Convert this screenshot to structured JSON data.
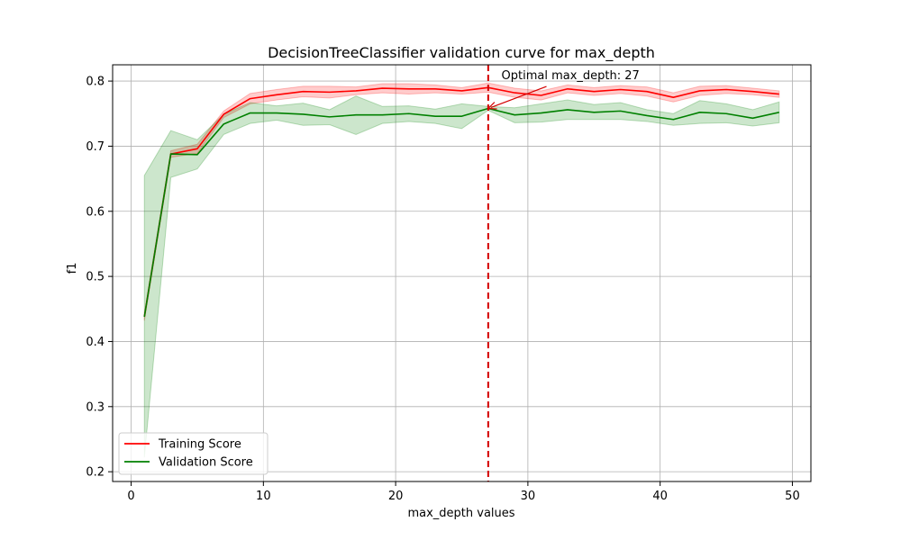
{
  "chart_data": {
    "type": "line",
    "title": "DecisionTreeClassifier validation curve for max_depth",
    "xlabel": "max_depth values",
    "ylabel": "f1",
    "xlim": [
      -1.4,
      51.4
    ],
    "ylim": [
      0.185,
      0.825
    ],
    "xticks": [
      0,
      10,
      20,
      30,
      40,
      50
    ],
    "yticks": [
      0.2,
      0.3,
      0.4,
      0.5,
      0.6,
      0.7,
      0.8
    ],
    "grid": true,
    "legend_position": "lower-left",
    "x": [
      1,
      3,
      5,
      7,
      9,
      11,
      13,
      15,
      17,
      19,
      21,
      23,
      25,
      27,
      29,
      31,
      33,
      35,
      37,
      39,
      41,
      43,
      45,
      47,
      49
    ],
    "series": [
      {
        "name": "Training Score",
        "color": "#ff0000",
        "band_color": "#ff0000",
        "values": [
          0.438,
          0.688,
          0.696,
          0.749,
          0.773,
          0.779,
          0.784,
          0.783,
          0.785,
          0.789,
          0.788,
          0.788,
          0.785,
          0.79,
          0.782,
          0.778,
          0.788,
          0.784,
          0.787,
          0.784,
          0.775,
          0.785,
          0.787,
          0.784,
          0.78
        ],
        "lower": [
          0.432,
          0.683,
          0.689,
          0.744,
          0.765,
          0.771,
          0.776,
          0.774,
          0.779,
          0.782,
          0.78,
          0.782,
          0.78,
          0.783,
          0.775,
          0.771,
          0.782,
          0.778,
          0.781,
          0.777,
          0.768,
          0.778,
          0.781,
          0.779,
          0.775
        ],
        "upper": [
          0.444,
          0.693,
          0.703,
          0.754,
          0.781,
          0.787,
          0.792,
          0.792,
          0.791,
          0.796,
          0.796,
          0.794,
          0.79,
          0.797,
          0.789,
          0.785,
          0.794,
          0.79,
          0.793,
          0.791,
          0.782,
          0.792,
          0.793,
          0.789,
          0.785
        ]
      },
      {
        "name": "Validation Score",
        "color": "#008000",
        "band_color": "#008000",
        "values": [
          0.438,
          0.688,
          0.687,
          0.734,
          0.751,
          0.751,
          0.749,
          0.745,
          0.748,
          0.748,
          0.75,
          0.746,
          0.746,
          0.758,
          0.748,
          0.751,
          0.756,
          0.752,
          0.754,
          0.747,
          0.741,
          0.752,
          0.75,
          0.743,
          0.752
        ],
        "lower": [
          0.222,
          0.652,
          0.665,
          0.718,
          0.735,
          0.74,
          0.732,
          0.733,
          0.718,
          0.735,
          0.738,
          0.735,
          0.727,
          0.755,
          0.736,
          0.737,
          0.741,
          0.741,
          0.741,
          0.738,
          0.732,
          0.735,
          0.736,
          0.731,
          0.736
        ],
        "upper": [
          0.655,
          0.724,
          0.71,
          0.749,
          0.767,
          0.762,
          0.766,
          0.756,
          0.777,
          0.761,
          0.762,
          0.757,
          0.765,
          0.761,
          0.759,
          0.765,
          0.771,
          0.764,
          0.767,
          0.756,
          0.75,
          0.77,
          0.765,
          0.756,
          0.768
        ]
      }
    ],
    "reference_line": {
      "x": 27,
      "color": "#d40000",
      "style": "dashed"
    },
    "annotation": {
      "text": "Optimal max_depth: 27",
      "point": [
        27,
        0.758
      ],
      "text_anchor_point": [
        28,
        0.8
      ]
    }
  }
}
